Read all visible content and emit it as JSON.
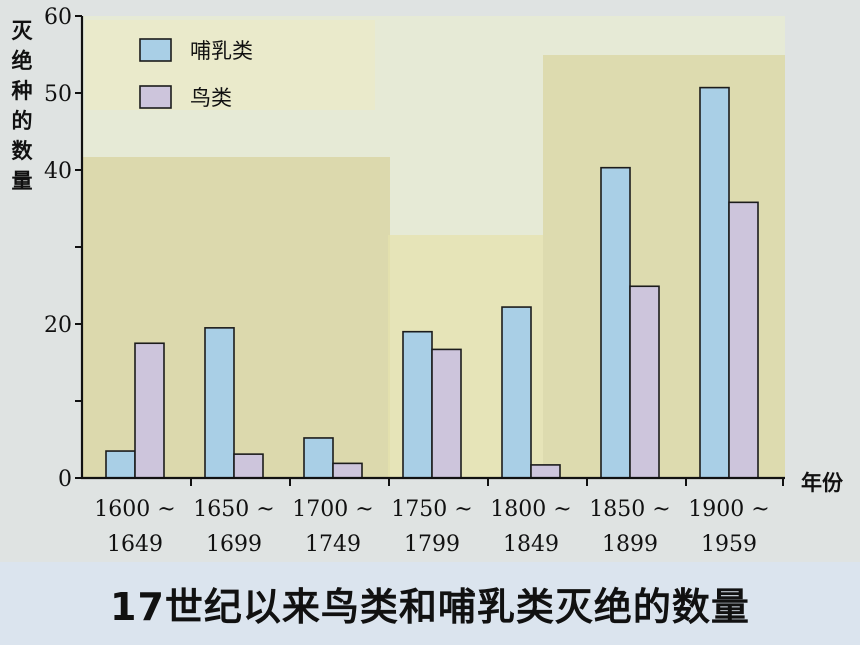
{
  "caption": "17世纪以来鸟类和哺乳类灭绝的数量",
  "chart_data": {
    "type": "bar",
    "title": "17世纪以来鸟类和哺乳类灭绝的数量",
    "ylabel": "灭绝种的数量",
    "xlabel": "年份",
    "ylim": [
      0,
      60
    ],
    "yticks": [
      0,
      10,
      20,
      30,
      40,
      50,
      60
    ],
    "yticklabels": [
      "0",
      "",
      "20",
      "",
      "40",
      "50",
      "60"
    ],
    "categories": [
      [
        "1600 ~",
        "1649"
      ],
      [
        "1650 ~",
        "1699"
      ],
      [
        "1700 ~",
        "1749"
      ],
      [
        "1750 ~",
        "1799"
      ],
      [
        "1800 ~",
        "1849"
      ],
      [
        "1850 ~",
        "1899"
      ],
      [
        "1900 ~",
        "1959"
      ]
    ],
    "series": [
      {
        "name": "哺乳类",
        "color": "#a9cfe6",
        "values": [
          3.5,
          19.5,
          5.2,
          19,
          22.2,
          40.3,
          50.7
        ]
      },
      {
        "name": "鸟类",
        "color": "#cdc5dc",
        "values": [
          17.5,
          3.1,
          1.9,
          16.7,
          1.7,
          24.9,
          35.8
        ]
      }
    ],
    "legend_position": "top-left",
    "grid": false
  }
}
